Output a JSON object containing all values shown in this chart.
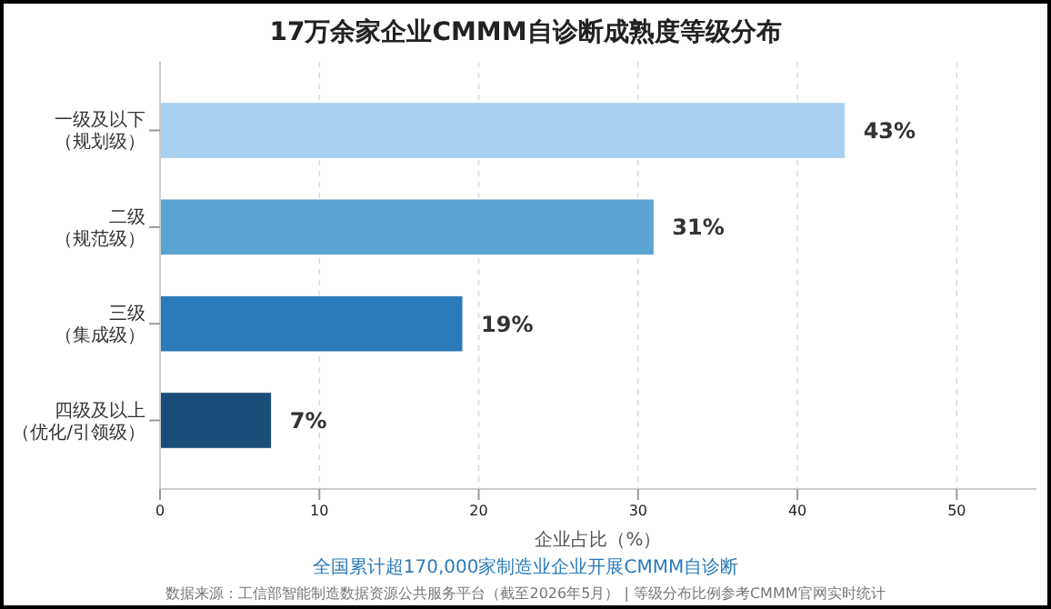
{
  "chart_data": {
    "type": "bar",
    "orientation": "horizontal",
    "title": "17万余家企业CMMM自诊断成熟度等级分布",
    "categories": [
      "一级及以下（规划级）",
      "二级（规范级）",
      "三级（集成级）",
      "四级及以上（优化/引领级）"
    ],
    "values": [
      43,
      31,
      19,
      7
    ],
    "colors": [
      "#a8d0f0",
      "#5ba3d3",
      "#2b7bba",
      "#1a4d7a"
    ],
    "value_labels": [
      "43%",
      "31%",
      "19%",
      "7%"
    ],
    "xlim": [
      0,
      55
    ],
    "xticks": [
      0,
      10,
      20,
      30,
      40,
      50
    ],
    "grid": "x",
    "xlabel": "企业占比（%）",
    "annotations": [
      "全国累计超170,000家制造业企业开展CMMM自诊断",
      "数据来源：工信部智能制造数据资源公共服务平台（截至2026年5月） | 等级分布比例参考CMMM官网实时统计"
    ]
  }
}
